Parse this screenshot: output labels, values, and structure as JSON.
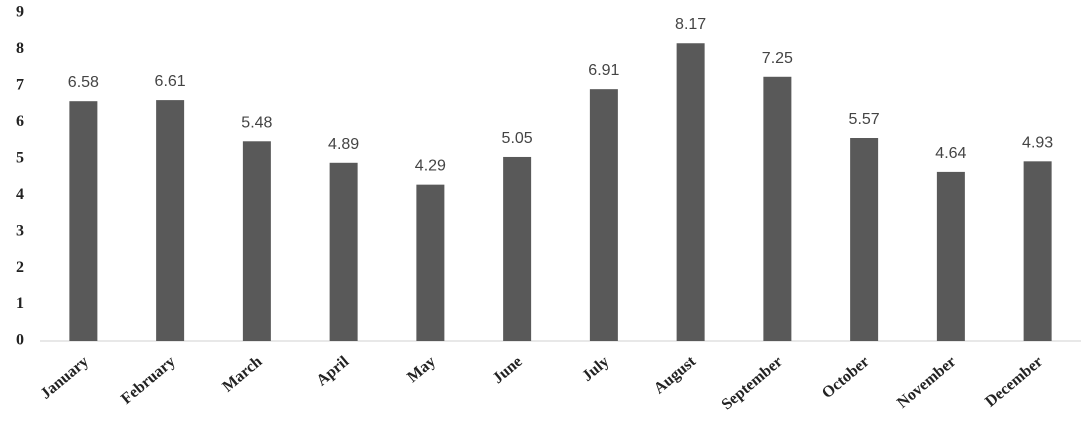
{
  "chart_data": {
    "type": "bar",
    "categories": [
      "January",
      "February",
      "March",
      "April",
      "May",
      "June",
      "July",
      "August",
      "September",
      "October",
      "November",
      "December"
    ],
    "values": [
      6.58,
      6.61,
      5.48,
      4.89,
      4.29,
      5.05,
      6.91,
      8.17,
      7.25,
      5.57,
      4.64,
      4.93
    ],
    "color": "#595959",
    "ylim": [
      0,
      9
    ],
    "yticks": [
      0,
      1,
      2,
      3,
      4,
      5,
      6,
      7,
      8,
      9
    ],
    "grid": false
  }
}
